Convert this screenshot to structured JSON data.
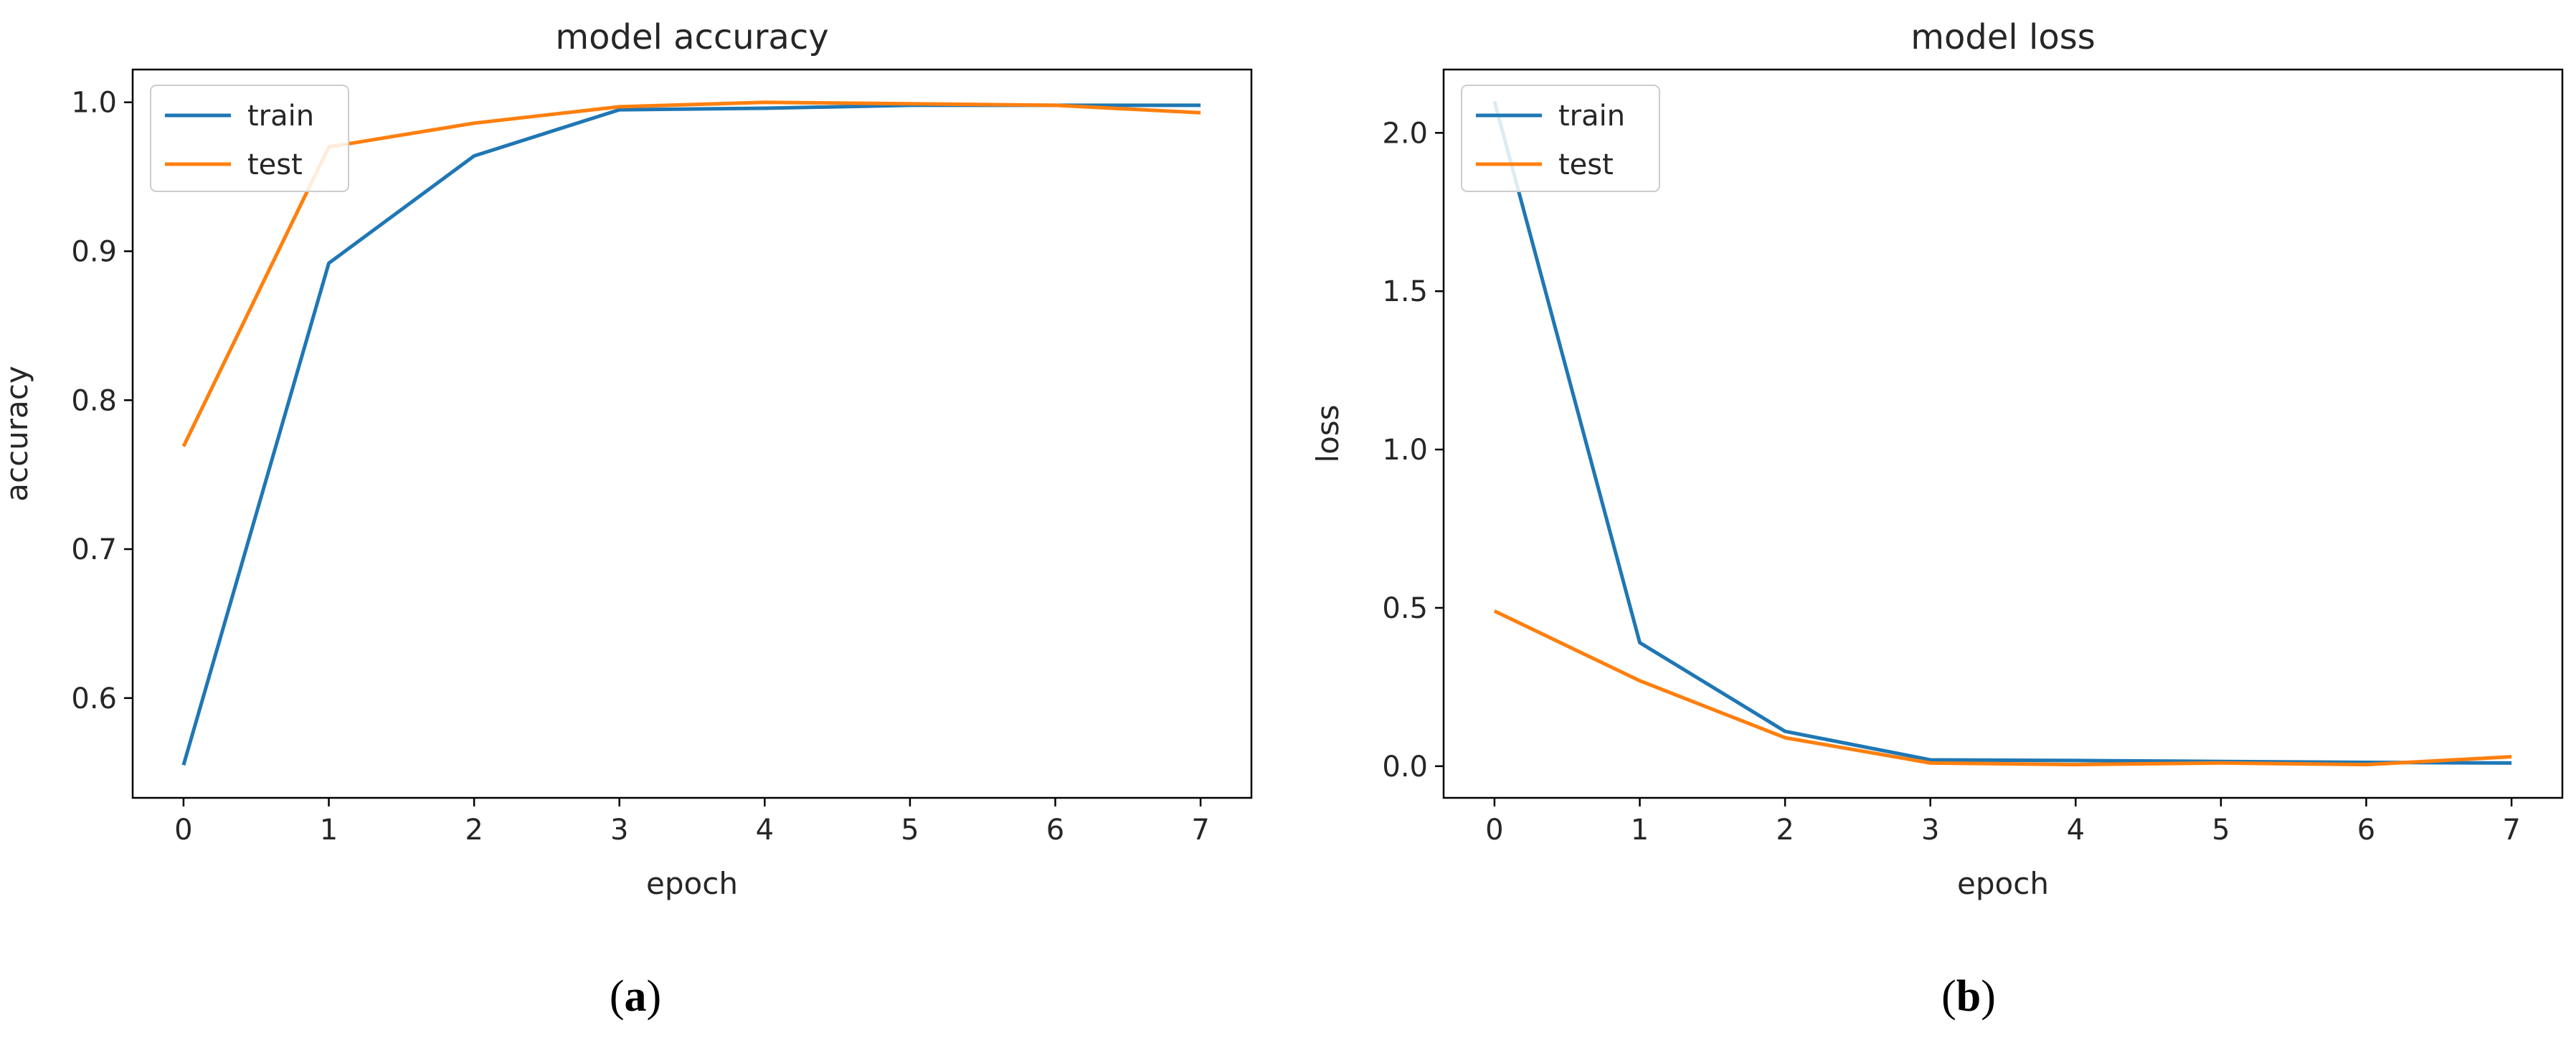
{
  "colors": {
    "train": "#1f77b4",
    "test": "#ff7f0e"
  },
  "chart_data": [
    {
      "type": "line",
      "title": "model accuracy",
      "xlabel": "epoch",
      "ylabel": "accuracy",
      "caption_letter": "a",
      "x": [
        0,
        1,
        2,
        3,
        4,
        5,
        6,
        7
      ],
      "xticks": [
        "0",
        "1",
        "2",
        "3",
        "4",
        "5",
        "6",
        "7"
      ],
      "yticks": [
        {
          "value": 0.6,
          "label": "0.6"
        },
        {
          "value": 0.7,
          "label": "0.7"
        },
        {
          "value": 0.8,
          "label": "0.8"
        },
        {
          "value": 0.9,
          "label": "0.9"
        },
        {
          "value": 1.0,
          "label": "1.0"
        }
      ],
      "xlim": [
        -0.35,
        7.35
      ],
      "ylim": [
        0.533,
        1.022
      ],
      "grid": false,
      "legend_position": "top-left",
      "series": [
        {
          "name": "train",
          "color": "#1f77b4",
          "values": [
            0.555,
            0.892,
            0.964,
            0.995,
            0.996,
            0.998,
            0.998,
            0.998
          ]
        },
        {
          "name": "test",
          "color": "#ff7f0e",
          "values": [
            0.769,
            0.97,
            0.986,
            0.997,
            1.0,
            0.999,
            0.998,
            0.993
          ]
        }
      ]
    },
    {
      "type": "line",
      "title": "model loss",
      "xlabel": "epoch",
      "ylabel": "loss",
      "caption_letter": "b",
      "x": [
        0,
        1,
        2,
        3,
        4,
        5,
        6,
        7
      ],
      "xticks": [
        "0",
        "1",
        "2",
        "3",
        "4",
        "5",
        "6",
        "7"
      ],
      "yticks": [
        {
          "value": 0.0,
          "label": "0.0"
        },
        {
          "value": 0.5,
          "label": "0.5"
        },
        {
          "value": 1.0,
          "label": "1.0"
        },
        {
          "value": 1.5,
          "label": "1.5"
        },
        {
          "value": 2.0,
          "label": "2.0"
        }
      ],
      "xlim": [
        -0.35,
        7.35
      ],
      "ylim": [
        -0.1,
        2.2
      ],
      "grid": false,
      "legend_position": "top-left",
      "series": [
        {
          "name": "train",
          "color": "#1f77b4",
          "values": [
            2.1,
            0.39,
            0.11,
            0.02,
            0.018,
            0.015,
            0.012,
            0.01
          ]
        },
        {
          "name": "test",
          "color": "#ff7f0e",
          "values": [
            0.49,
            0.27,
            0.09,
            0.01,
            0.005,
            0.01,
            0.005,
            0.03
          ]
        }
      ]
    }
  ]
}
